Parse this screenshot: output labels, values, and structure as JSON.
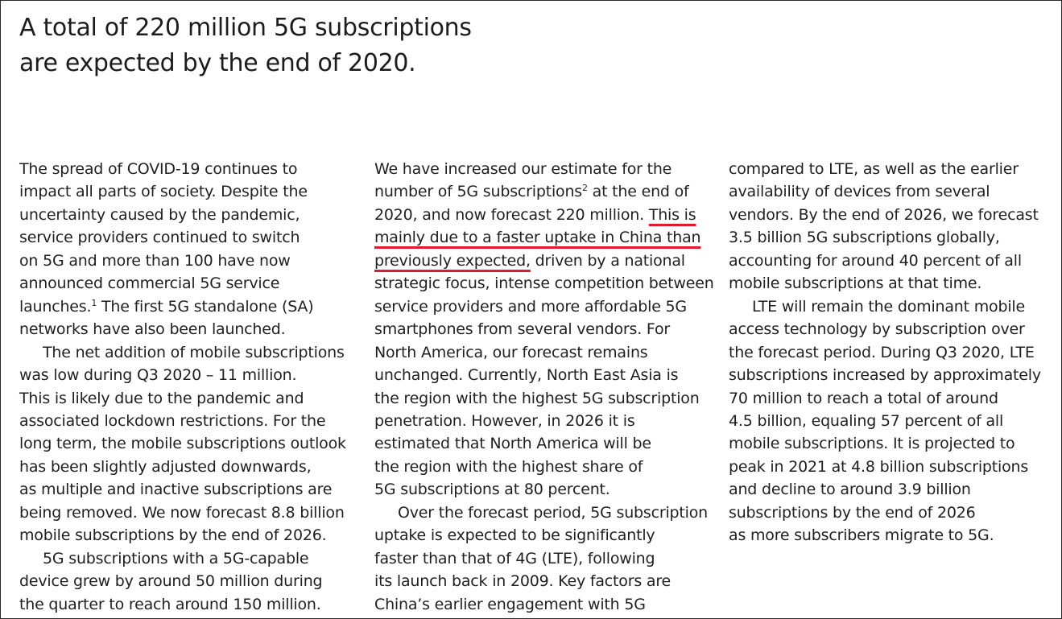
{
  "page": {
    "title_lines": [
      "A total of 220 million 5G subscriptions",
      "are expected by the end of 2020."
    ]
  },
  "columns": {
    "col1": [
      "The spread of COVID-19 continues to",
      "impact all parts of society. Despite the",
      "uncertainty caused by the pandemic,",
      "service providers continued to switch",
      "on 5G and more than 100 have now",
      "announced commercial 5G service",
      "launches.",
      "1",
      " The first 5G standalone (SA)",
      "networks have also been launched.",
      "The net addition of mobile subscriptions",
      "was low during Q3 2020 – 11 million.",
      "This is likely due to the pandemic and",
      "associated lockdown restrictions. For the",
      "long term, the mobile subscriptions outlook",
      "has been slightly adjusted downwards,",
      "as multiple and inactive subscriptions are",
      "being removed. We now forecast 8.8 billion",
      "mobile subscriptions by the end of 2026.",
      "5G subscriptions with a 5G-capable",
      "device grew by around 50 million during",
      "the quarter to reach around 150 million."
    ],
    "col2": [
      "We have increased our estimate for the",
      "number of 5G subscriptions",
      "2",
      " at the end of",
      "2020, and now forecast 220 million. ",
      "This is",
      "mainly due to a faster uptake in China than",
      "previously expected,",
      " driven by a national",
      "strategic focus, intense competition between",
      "service providers and more affordable 5G",
      "smartphones from several vendors. For",
      "North America, our forecast remains",
      "unchanged. Currently, North East Asia is",
      "the region with the highest 5G subscription",
      "penetration. However, in 2026 it is",
      "estimated that North America will be",
      "the region with the highest share of",
      "5G subscriptions at 80 percent.",
      "Over the forecast period, 5G subscription",
      "uptake is expected to be significantly",
      "faster than that of 4G (LTE), following",
      "its launch back in 2009. Key factors are",
      "China’s earlier engagement with 5G"
    ],
    "col3": [
      "compared to LTE, as well as the earlier",
      "availability of devices from several",
      "vendors. By the end of 2026, we forecast",
      "3.5 billion 5G subscriptions globally,",
      "accounting for around 40 percent of all",
      "mobile subscriptions at that time.",
      "LTE will remain the dominant mobile",
      "access technology by subscription over",
      "the forecast period. During Q3 2020, LTE",
      "subscriptions increased by approximately",
      "70 million to reach a total of around",
      "4.5 billion, equaling 57 percent of all",
      "mobile subscriptions. It is projected to",
      "peak in 2021 at 4.8 billion subscriptions",
      "and decline to around 3.9 billion",
      "subscriptions by the end of 2026",
      "as more subscribers migrate to 5G."
    ]
  },
  "colors": {
    "text": "#1f1f1f",
    "highlight_underline": "#e5172f",
    "border": "#2b2b2b"
  }
}
